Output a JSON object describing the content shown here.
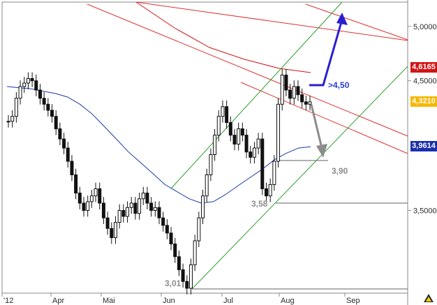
{
  "chart_data": {
    "type": "candlestick",
    "grid": false,
    "ylim": [
      3.01,
      5.15
    ],
    "ylog": true,
    "x_labels": [
      "'12",
      "Apr",
      "Mai",
      "Jun",
      "Jul",
      "Aug",
      "Sep"
    ],
    "y_ticks": [
      "5,0000",
      "4,5000",
      "3,5000"
    ],
    "badges": [
      {
        "label": "4,6165",
        "value": 4.6165,
        "color": "#d21414"
      },
      {
        "label": "4,3210",
        "value": 4.321,
        "color": "#f6b700"
      },
      {
        "label": "3,9614",
        "value": 3.9614,
        "color": "#1a2fae"
      }
    ],
    "annotations": [
      {
        "text": ">4,50",
        "value": 4.5,
        "color": "#2a3fd0"
      },
      {
        "text": "3,90",
        "value": 3.9,
        "color": "#8c8c8c"
      },
      {
        "text": "3,58",
        "value": 3.58,
        "color": "#8c8c8c"
      },
      {
        "text": "3,01",
        "value": 3.01,
        "color": "#8c8c8c"
      }
    ],
    "series_close": [
      4.16,
      4.2,
      4.35,
      4.45,
      4.48,
      4.52,
      4.5,
      4.42,
      4.35,
      4.3,
      4.25,
      4.2,
      4.1,
      4.02,
      3.95,
      3.85,
      3.75,
      3.62,
      3.55,
      3.5,
      3.56,
      3.6,
      3.65,
      3.55,
      3.45,
      3.38,
      3.32,
      3.42,
      3.5,
      3.46,
      3.52,
      3.55,
      3.48,
      3.58,
      3.62,
      3.55,
      3.5,
      3.52,
      3.45,
      3.4,
      3.35,
      3.28,
      3.2,
      3.12,
      3.05,
      3.01,
      3.15,
      3.3,
      3.45,
      3.6,
      3.75,
      3.9,
      4.05,
      4.2,
      4.28,
      4.15,
      4.05,
      3.98,
      4.1,
      4.05,
      3.92,
      3.88,
      3.95,
      4.02,
      3.65,
      3.6,
      3.68,
      3.85,
      4.3,
      4.55,
      4.42,
      4.35,
      4.45,
      4.38,
      4.32,
      4.3,
      4.32
    ],
    "moving_average": [
      4.45,
      4.44,
      4.43,
      4.41,
      4.39,
      4.36,
      4.3,
      4.22,
      4.12,
      4.02,
      3.92,
      3.84,
      3.76,
      3.68,
      3.63,
      3.58,
      3.55,
      3.56,
      3.61,
      3.67,
      3.73,
      3.79,
      3.86,
      3.91,
      3.95,
      3.96
    ],
    "lines": {
      "red_channel_upper_start": 5.3,
      "red_channel_upper_end": 4.95,
      "red_channel_lower_start": 4.95,
      "red_channel_lower_end": 3.92,
      "red_ma_curve": [
        5.3,
        5.0,
        4.8,
        4.7,
        4.62,
        4.6165
      ],
      "green_channel_upper": [
        3.05,
        4.65
      ],
      "green_channel_lower": [
        3.01,
        4.6
      ]
    }
  }
}
